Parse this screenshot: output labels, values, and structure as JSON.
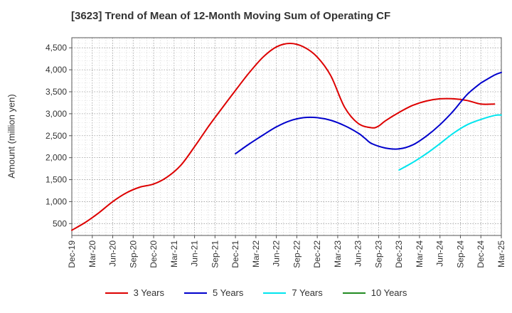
{
  "chart_data": {
    "type": "line",
    "title": "[3623]  Trend of Mean of 12-Month Moving Sum of Operating CF",
    "xlabel": "",
    "ylabel": "Amount (million yen)",
    "ylim": [
      230,
      4730
    ],
    "yticks": [
      500,
      1000,
      1500,
      2000,
      2500,
      3000,
      3500,
      4000,
      4500
    ],
    "ytick_labels": [
      "500",
      "1,000",
      "1,500",
      "2,000",
      "2,500",
      "3,000",
      "3,500",
      "4,000",
      "4,500"
    ],
    "x_tick_labels": [
      "Dec-19",
      "Mar-20",
      "Jun-20",
      "Sep-20",
      "Dec-20",
      "Mar-21",
      "Jun-21",
      "Sep-21",
      "Dec-21",
      "Mar-22",
      "Jun-22",
      "Sep-22",
      "Dec-22",
      "Mar-23",
      "Jun-23",
      "Sep-23",
      "Dec-23",
      "Mar-24",
      "Jun-24",
      "Sep-24",
      "Dec-24",
      "Mar-25"
    ],
    "x_unit": "months since Dec-19",
    "xlim": [
      0,
      63
    ],
    "grid": true,
    "legend_position": "bottom",
    "series": [
      {
        "name": "3 Years",
        "color": "#dd0000",
        "x": [
          0,
          2,
          4,
          6,
          8,
          10,
          12,
          14,
          16,
          18,
          20,
          22,
          24,
          26,
          28,
          30,
          32,
          34,
          36,
          38,
          40,
          42,
          44,
          45,
          46,
          48,
          50,
          52,
          54,
          56,
          58,
          60,
          62
        ],
        "values": [
          350,
          530,
          750,
          1000,
          1200,
          1330,
          1400,
          1560,
          1830,
          2250,
          2700,
          3120,
          3530,
          3930,
          4280,
          4520,
          4600,
          4520,
          4290,
          3860,
          3150,
          2780,
          2680,
          2720,
          2840,
          3030,
          3190,
          3290,
          3340,
          3340,
          3300,
          3220,
          3220
        ]
      },
      {
        "name": "5 Years",
        "color": "#0000cc",
        "x": [
          24,
          26,
          28,
          30,
          32,
          34,
          36,
          38,
          40,
          42,
          43,
          44,
          46,
          48,
          50,
          52,
          54,
          56,
          58,
          60
        ],
        "values": [
          2090,
          2310,
          2510,
          2700,
          2840,
          2910,
          2910,
          2850,
          2730,
          2560,
          2440,
          2320,
          2220,
          2200,
          2290,
          2490,
          2750,
          3070,
          3440,
          3700
        ]
      },
      {
        "name": "5 Years",
        "color": "#0000cc",
        "x": [
          60,
          62,
          63
        ],
        "values": [
          3700,
          3880,
          3940
        ]
      },
      {
        "name": "7 Years",
        "color": "#00e5ee",
        "x": [
          48,
          50,
          52,
          54,
          56,
          58,
          60,
          62,
          63
        ],
        "values": [
          1720,
          1890,
          2090,
          2320,
          2560,
          2750,
          2870,
          2960,
          2970
        ]
      },
      {
        "name": "10 Years",
        "color": "#228b22",
        "x": [],
        "values": []
      }
    ],
    "legend": [
      {
        "name": "3 Years",
        "color": "#dd0000"
      },
      {
        "name": "5 Years",
        "color": "#0000cc"
      },
      {
        "name": "7 Years",
        "color": "#00e5ee"
      },
      {
        "name": "10 Years",
        "color": "#228b22"
      }
    ]
  }
}
